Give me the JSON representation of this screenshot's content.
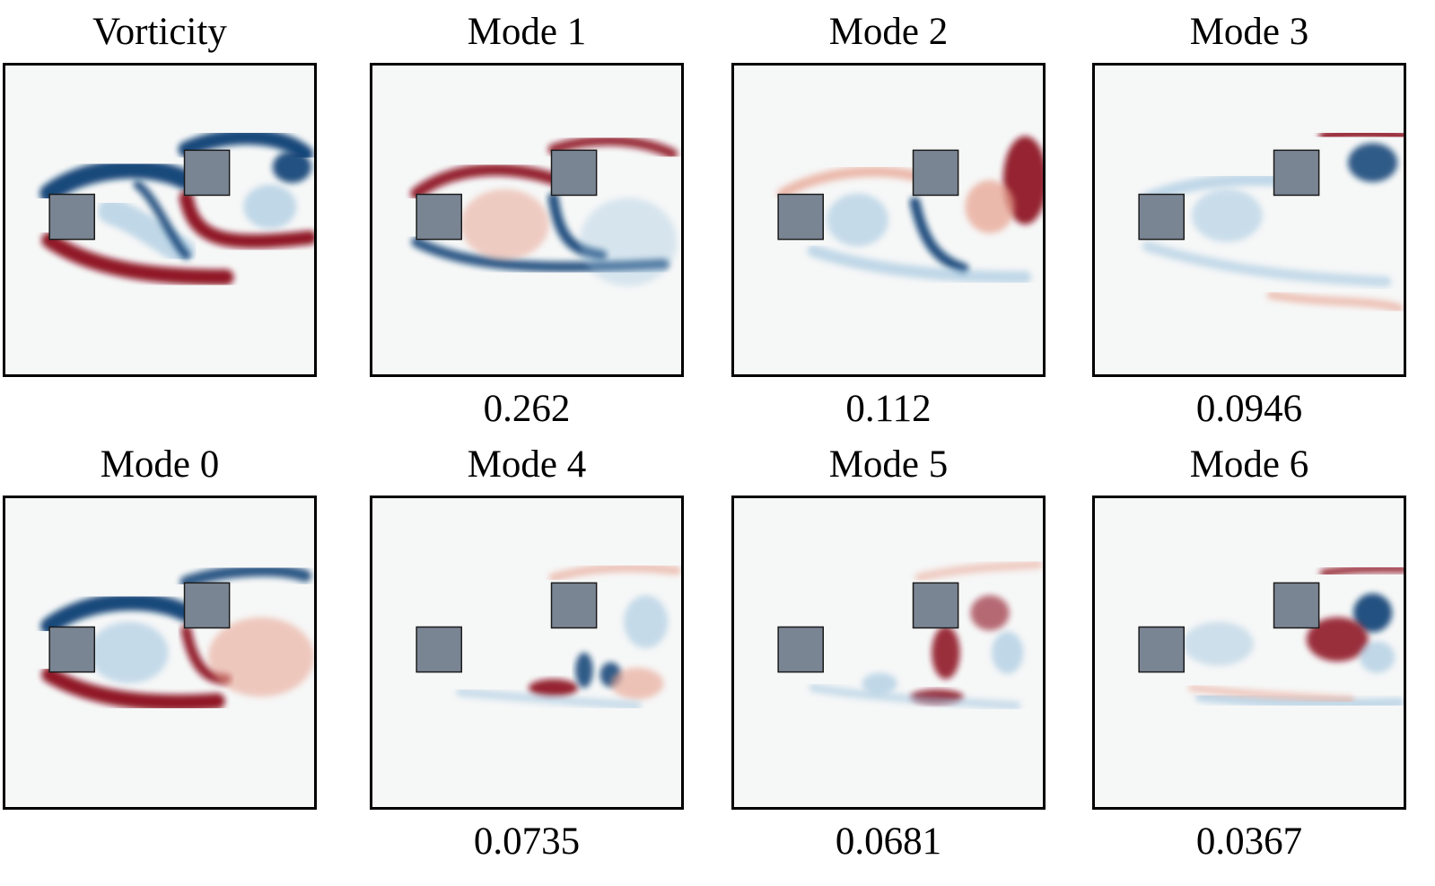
{
  "figure": {
    "rows": [
      [
        {
          "title": "Vorticity",
          "value": "",
          "style": "vorticity"
        },
        {
          "title": "Mode 1",
          "value": "0.262",
          "style": "mode1"
        },
        {
          "title": "Mode 2",
          "value": "0.112",
          "style": "mode2"
        },
        {
          "title": "Mode 3",
          "value": "0.0946",
          "style": "mode3"
        }
      ],
      [
        {
          "title": "Mode 0",
          "value": "",
          "style": "mode0"
        },
        {
          "title": "Mode 4",
          "value": "0.0735",
          "style": "mode4"
        },
        {
          "title": "Mode 5",
          "value": "0.0681",
          "style": "mode5"
        },
        {
          "title": "Mode 6",
          "value": "0.0367",
          "style": "mode6"
        }
      ]
    ],
    "colors": {
      "positive": "#8b0a1f",
      "negative": "#0d3f75",
      "obstacle": "#7a8594",
      "background": "#f6f7f7"
    }
  }
}
